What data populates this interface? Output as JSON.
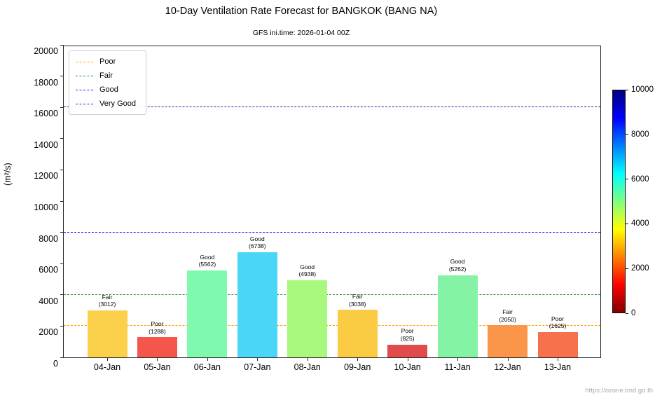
{
  "chart_data": {
    "type": "bar",
    "title": "10-Day Ventilation Rate Forecast for BANGKOK (BANG NA)",
    "subtitle": "GFS ini.time: 2026-01-04 00Z",
    "xlabel": "",
    "ylabel": "(m²/s)",
    "ylim": [
      0,
      20000
    ],
    "yticks": [
      0,
      2000,
      4000,
      6000,
      8000,
      10000,
      12000,
      14000,
      16000,
      18000,
      20000
    ],
    "categories": [
      "04-Jan",
      "05-Jan",
      "06-Jan",
      "07-Jan",
      "08-Jan",
      "09-Jan",
      "10-Jan",
      "11-Jan",
      "12-Jan",
      "13-Jan"
    ],
    "values": [
      3012,
      1288,
      5562,
      6738,
      4938,
      3038,
      825,
      5262,
      2050,
      1625
    ],
    "ratings": [
      "Fair",
      "Poor",
      "Good",
      "Good",
      "Good",
      "Fair",
      "Poor",
      "Good",
      "Fair",
      "Poor"
    ],
    "bar_colors": [
      "#FBD04A",
      "#F4564C",
      "#7FF9AD",
      "#49D6F7",
      "#A9F87E",
      "#FBCB43",
      "#E14B4B",
      "#85F3A5",
      "#FA9549",
      "#F7724C"
    ],
    "grid": false,
    "legend_position": "upper-left",
    "thresholds": [
      {
        "label": "Poor",
        "value": 2000,
        "color": "#FFA500"
      },
      {
        "label": "Fair",
        "value": 4000,
        "color": "#228B22"
      },
      {
        "label": "Good",
        "value": 8000,
        "color": "#1A1AFF"
      },
      {
        "label": "Very Good",
        "value": 16000,
        "color": "#26269E"
      }
    ],
    "colorbar": {
      "min": 0,
      "max": 10000,
      "ticks": [
        0,
        2000,
        4000,
        6000,
        8000,
        10000
      ],
      "gradient_stops": [
        {
          "pos": "0%",
          "color": "#800000"
        },
        {
          "pos": "12.5%",
          "color": "#FF0000"
        },
        {
          "pos": "37.5%",
          "color": "#FFFF00"
        },
        {
          "pos": "62.5%",
          "color": "#00FFFF"
        },
        {
          "pos": "87.5%",
          "color": "#0000FF"
        },
        {
          "pos": "100%",
          "color": "#000080"
        }
      ]
    },
    "footer_url": "https://ozone.tmd.go.th"
  }
}
